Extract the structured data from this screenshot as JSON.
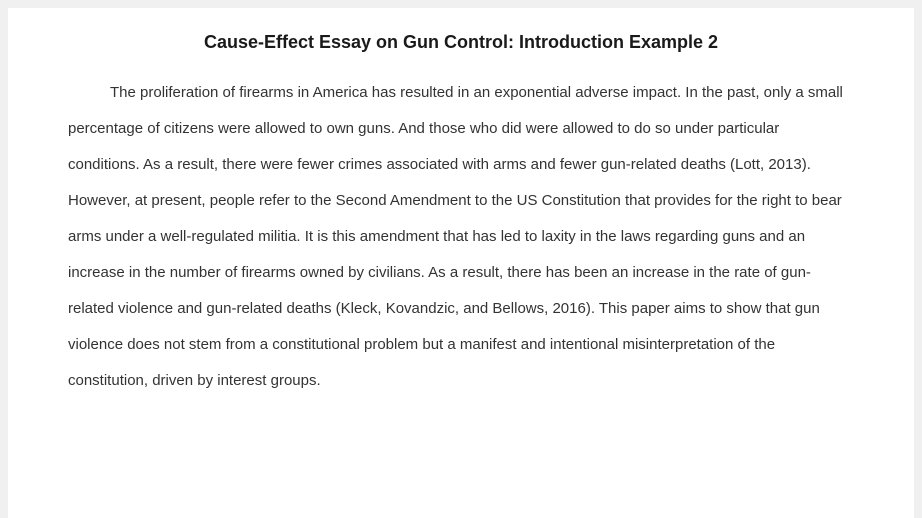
{
  "document": {
    "title": "Cause-Effect Essay on Gun Control: Introduction Example 2",
    "body": "The proliferation of firearms in America has resulted in an exponential adverse impact. In the past, only a small percentage of citizens were allowed to own guns. And those who did were allowed to do so under particular conditions. As a result, there were fewer crimes associated with arms and fewer gun-related deaths (Lott, 2013). However, at present, people refer to the Second Amendment to the US Constitution that provides for the right to bear arms under a well-regulated militia. It is this amendment that has led to laxity in the laws regarding guns and an increase in the number of firearms owned by civilians. As a result, there has been an increase in the rate of gun-related violence and gun-related deaths (Kleck, Kovandzic, and Bellows, 2016). This paper aims to show that gun violence does not stem from a constitutional problem but a manifest and intentional misinterpretation of the constitution, driven by interest groups."
  },
  "style": {
    "background_color": "#f0f0f0",
    "paper_color": "#ffffff",
    "title_color": "#1a1a1a",
    "body_color": "#333333",
    "title_fontsize": 18,
    "body_fontsize": 15,
    "line_height": 2.4
  }
}
